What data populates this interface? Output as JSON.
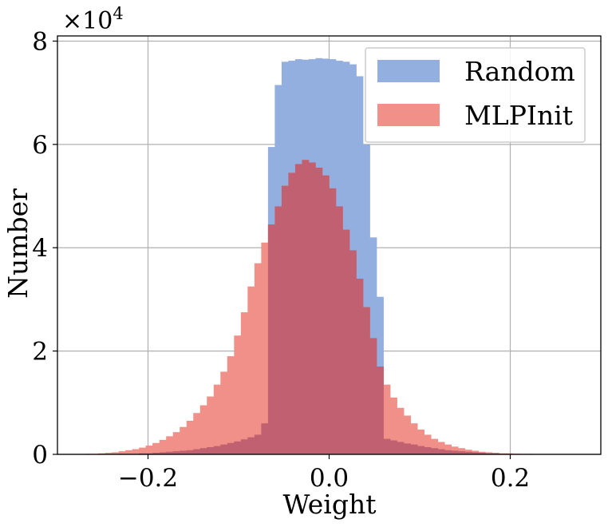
{
  "chart_data": {
    "type": "bar",
    "title": "",
    "xlabel": "Weight",
    "ylabel": "Number",
    "y_multiplier_label": "×10",
    "y_multiplier_exponent": "4",
    "xlim": [
      -0.3,
      0.3
    ],
    "ylim": [
      0,
      8.1
    ],
    "y_unit_scale": 10000,
    "bin_width": 0.0075,
    "bin_start": -0.27,
    "xticks": [
      {
        "value": -0.2,
        "label": "−0.2"
      },
      {
        "value": 0.0,
        "label": "0.0"
      },
      {
        "value": 0.2,
        "label": "0.2"
      }
    ],
    "yticks": [
      {
        "value": 0,
        "label": "0"
      },
      {
        "value": 2,
        "label": "2"
      },
      {
        "value": 4,
        "label": "4"
      },
      {
        "value": 6,
        "label": "6"
      },
      {
        "value": 8,
        "label": "8"
      }
    ],
    "grid": true,
    "legend_position": "top-right",
    "overlap_color": "#c06070",
    "series": [
      {
        "name": "Random",
        "color": "#92afe0",
        "values": [
          0,
          0,
          0,
          0,
          0,
          0.01,
          0.01,
          0.01,
          0.02,
          0.02,
          0.03,
          0.04,
          0.05,
          0.06,
          0.07,
          0.08,
          0.1,
          0.12,
          0.14,
          0.16,
          0.19,
          0.22,
          0.25,
          0.29,
          0.33,
          0.38,
          0.6,
          5.95,
          7.15,
          7.6,
          7.62,
          7.65,
          7.64,
          7.65,
          7.67,
          7.66,
          7.65,
          7.62,
          7.6,
          7.55,
          7.32,
          6.0,
          4.2,
          3.05,
          0.3,
          0.27,
          0.24,
          0.21,
          0.19,
          0.16,
          0.14,
          0.12,
          0.1,
          0.08,
          0.07,
          0.06,
          0.05,
          0.04,
          0.03,
          0.02,
          0.02,
          0.01,
          0.01,
          0.01,
          0,
          0,
          0,
          0,
          0,
          0,
          0,
          0
        ]
      },
      {
        "name": "MLPInit",
        "color": "#f09088",
        "values": [
          0.01,
          0.01,
          0.02,
          0.03,
          0.04,
          0.06,
          0.08,
          0.1,
          0.13,
          0.17,
          0.22,
          0.28,
          0.35,
          0.43,
          0.53,
          0.65,
          0.8,
          0.95,
          1.12,
          1.35,
          1.6,
          1.9,
          2.3,
          2.75,
          3.25,
          3.7,
          4.1,
          4.45,
          4.8,
          5.2,
          5.45,
          5.62,
          5.7,
          5.65,
          5.55,
          5.4,
          5.15,
          4.8,
          4.35,
          3.95,
          3.4,
          2.85,
          2.25,
          1.7,
          1.35,
          1.1,
          0.9,
          0.75,
          0.6,
          0.48,
          0.38,
          0.3,
          0.24,
          0.19,
          0.15,
          0.12,
          0.09,
          0.07,
          0.05,
          0.04,
          0.03,
          0.02,
          0.02,
          0.01,
          0.01,
          0.01,
          0,
          0,
          0,
          0,
          0,
          0
        ]
      }
    ]
  }
}
